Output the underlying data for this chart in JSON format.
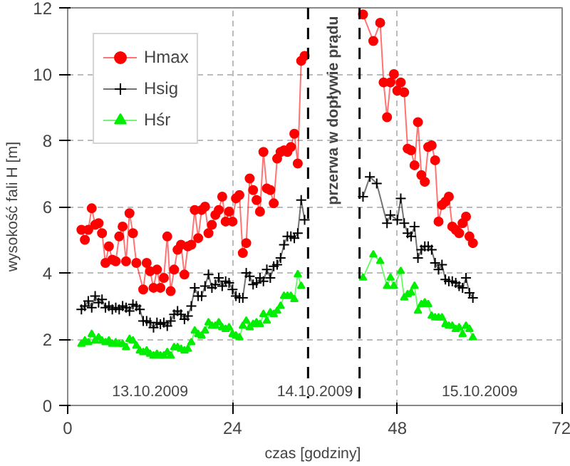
{
  "chart_data": {
    "type": "line",
    "xlabel": "czas  [godziny]",
    "ylabel": "wysokość fali H [m]",
    "xlim": [
      0,
      72
    ],
    "ylim": [
      0,
      12
    ],
    "xticks": [
      0,
      24,
      48,
      72
    ],
    "yticks": [
      0,
      2,
      4,
      6,
      8,
      10,
      12
    ],
    "grid": true,
    "legend": "top left",
    "line_style": "solid",
    "series": [
      {
        "name": "Hmax",
        "color": "#ff0000",
        "marker": "circle",
        "x": [
          2,
          2.5,
          3,
          3.5,
          4,
          4.5,
          5,
          5.5,
          6,
          6.5,
          7,
          7.5,
          8,
          8.5,
          9,
          9.5,
          10,
          11,
          11.5,
          12,
          12.5,
          13,
          13.5,
          14,
          14.5,
          15,
          15.5,
          16,
          16.5,
          17,
          17.5,
          18,
          18.5,
          19,
          19.5,
          20,
          20.5,
          21,
          21.5,
          22,
          22.5,
          23,
          23.5,
          24,
          24.5,
          25,
          25.5,
          26,
          26.5,
          27,
          27.5,
          28,
          28.5,
          29,
          29.5,
          30,
          30.5,
          31,
          31.5,
          32,
          32.5,
          33,
          33.5,
          34,
          34.5,
          38,
          43,
          44.5,
          45.5,
          46,
          46.5,
          47,
          47.5,
          48,
          48.5,
          49,
          49.5,
          50,
          50.5,
          51,
          51.5,
          52,
          52.5,
          53,
          53.5,
          54,
          54.5,
          55,
          55.5,
          56,
          56.5,
          57,
          57.5,
          58,
          58.5,
          59
        ],
        "values": [
          5.3,
          5.0,
          5.3,
          5.95,
          5.45,
          5.5,
          5.2,
          4.3,
          4.8,
          4.4,
          4.35,
          5.1,
          5.4,
          4.35,
          5.8,
          5.2,
          4.3,
          3.5,
          4.3,
          4.05,
          3.55,
          4.1,
          3.55,
          3.85,
          5.1,
          3.45,
          4.1,
          4.7,
          4.85,
          3.95,
          4.8,
          4.85,
          5.9,
          5.05,
          5.9,
          6.0,
          5.2,
          5.45,
          5.75,
          5.9,
          6.3,
          5.55,
          5.85,
          5.55,
          6.25,
          6.35,
          4.6,
          4.9,
          6.85,
          6.5,
          6.2,
          5.85,
          7.65,
          6.55,
          6.5,
          6.1,
          7.45,
          7.65,
          7.7,
          7.65,
          7.8,
          8.2,
          7.3,
          10.4,
          10.55,
          null,
          11.8,
          11.0,
          11.55,
          9.75,
          8.7,
          9.75,
          10.0,
          9.5,
          9.75,
          9.45,
          7.75,
          7.7,
          7.25,
          8.55,
          6.95,
          6.75,
          7.8,
          7.85,
          7.4,
          5.55,
          6.05,
          6.15,
          6.3,
          5.4,
          5.3,
          5.2,
          5.5,
          5.7,
          5.1,
          4.9
        ]
      },
      {
        "name": "Hsig",
        "color": "#000000",
        "marker": "cross",
        "x": [
          2,
          2.5,
          3,
          3.5,
          4,
          4.5,
          5,
          5.5,
          6,
          6.5,
          7,
          7.5,
          8,
          8.5,
          9,
          9.5,
          10,
          10.5,
          11,
          11.5,
          12,
          12.5,
          13,
          13.5,
          14,
          14.5,
          15,
          15.5,
          16,
          16.5,
          17,
          17.5,
          18,
          18.5,
          19,
          19.5,
          20,
          20.5,
          21,
          21.5,
          22,
          22.5,
          23,
          23.5,
          24,
          24.5,
          25,
          25.5,
          26,
          26.5,
          27,
          27.5,
          28,
          28.5,
          29,
          29.5,
          30,
          30.5,
          31,
          31.5,
          32,
          32.5,
          33,
          33.5,
          34,
          34.5,
          38,
          43,
          44,
          45,
          46.5,
          47,
          48,
          48.5,
          49,
          49.5,
          50,
          50.5,
          51,
          51.5,
          52,
          52.5,
          53,
          53.5,
          54,
          54.5,
          55,
          55.5,
          56,
          56.5,
          57,
          57.5,
          58,
          58.5,
          59
        ],
        "values": [
          2.9,
          3.0,
          3.15,
          2.95,
          3.3,
          3.1,
          3.2,
          2.95,
          3.0,
          2.9,
          2.95,
          2.9,
          3.0,
          2.95,
          2.85,
          3.05,
          3.0,
          2.9,
          2.55,
          2.55,
          2.5,
          2.35,
          2.5,
          2.45,
          2.5,
          2.4,
          2.55,
          2.75,
          2.85,
          2.75,
          2.6,
          2.7,
          3.0,
          3.55,
          3.3,
          3.3,
          3.6,
          3.95,
          3.55,
          3.65,
          3.85,
          3.6,
          3.75,
          3.7,
          3.5,
          3.3,
          3.25,
          3.25,
          4.0,
          3.9,
          3.65,
          3.7,
          3.85,
          3.75,
          4.1,
          3.85,
          4.2,
          4.25,
          4.45,
          4.85,
          5.1,
          5.1,
          5.05,
          5.2,
          6.2,
          5.6,
          null,
          6.3,
          6.9,
          6.7,
          5.5,
          5.75,
          5.6,
          6.25,
          5.5,
          5.2,
          5.1,
          5.4,
          4.45,
          4.7,
          4.8,
          4.8,
          4.7,
          4.3,
          4.1,
          4.25,
          3.8,
          3.75,
          3.75,
          3.7,
          3.6,
          3.55,
          3.85,
          3.4,
          3.25
        ]
      },
      {
        "name": "Hśr",
        "color": "#00ee00",
        "marker": "triangle",
        "x": [
          2,
          2.5,
          3,
          3.5,
          4,
          4.5,
          5,
          5.5,
          6,
          6.5,
          7,
          7.5,
          8,
          8.5,
          9,
          9.5,
          10,
          10.5,
          11,
          11.5,
          12,
          12.5,
          13,
          13.5,
          14,
          14.5,
          15,
          15.5,
          16,
          16.5,
          17,
          17.5,
          18,
          18.5,
          19,
          19.5,
          20,
          20.5,
          21,
          21.5,
          22,
          22.5,
          23,
          23.5,
          24,
          24.5,
          25,
          25.5,
          26,
          26.5,
          27,
          27.5,
          28,
          28.5,
          29,
          29.5,
          30,
          30.5,
          31,
          31.5,
          32,
          32.5,
          33,
          33.5,
          34,
          38,
          43,
          44.5,
          45.5,
          46.5,
          47,
          47.5,
          48.5,
          49,
          49.5,
          50,
          50.5,
          51,
          51.5,
          52,
          52.5,
          53,
          53.5,
          54,
          54.5,
          55,
          55.5,
          56,
          56.5,
          57,
          57.5,
          58,
          58.5,
          59
        ],
        "values": [
          1.85,
          1.95,
          1.9,
          2.15,
          1.95,
          2.05,
          1.95,
          1.9,
          1.95,
          1.85,
          1.9,
          1.85,
          1.85,
          1.75,
          2.0,
          1.95,
          1.8,
          1.65,
          1.6,
          1.65,
          1.55,
          1.5,
          1.55,
          1.5,
          1.5,
          1.6,
          1.5,
          1.75,
          1.75,
          1.7,
          1.65,
          1.7,
          1.9,
          2.25,
          2.15,
          2.1,
          2.25,
          2.5,
          2.4,
          2.4,
          2.5,
          2.35,
          2.3,
          2.35,
          2.15,
          2.1,
          2.05,
          2.4,
          2.55,
          2.35,
          2.45,
          2.5,
          2.45,
          2.75,
          2.55,
          2.8,
          2.75,
          2.85,
          3.0,
          3.3,
          3.3,
          3.3,
          3.2,
          3.95,
          3.6,
          null,
          3.85,
          4.55,
          4.35,
          3.6,
          3.85,
          3.6,
          4.05,
          3.25,
          3.35,
          3.4,
          3.6,
          2.85,
          3.05,
          3.1,
          3.05,
          2.7,
          2.65,
          2.65,
          2.65,
          2.45,
          2.4,
          2.4,
          2.3,
          2.35,
          2.15,
          2.4,
          2.3,
          2.05
        ]
      }
    ],
    "ref_lines": [
      {
        "axis": "x",
        "value": 35,
        "color": "#000000",
        "line_style": "dashed"
      },
      {
        "axis": "x",
        "value": 42.5,
        "color": "#000000",
        "line_style": "dashed"
      }
    ],
    "annotations": [
      "13.10.2009",
      "14.10.2009",
      "15.10.2009",
      "przerwa w dopływie prądu"
    ]
  }
}
